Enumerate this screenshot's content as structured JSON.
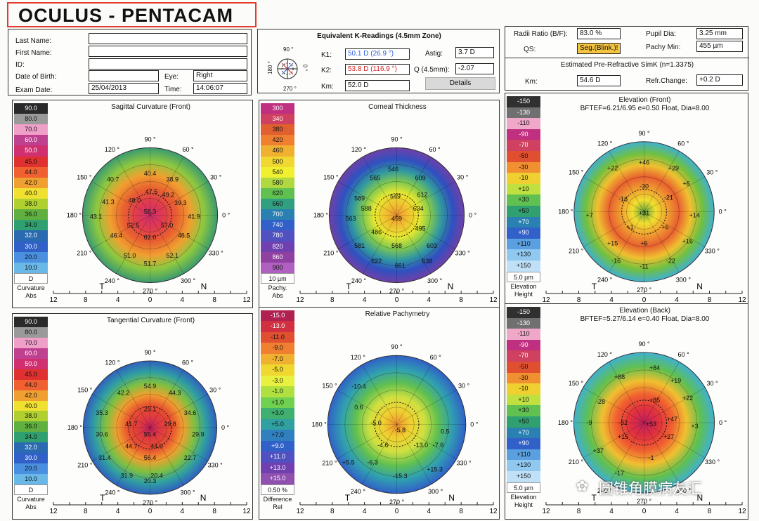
{
  "logo": "OCULUS - PENTACAM",
  "patient": {
    "last_name_label": "Last Name:",
    "first_name_label": "First Name:",
    "id_label": "ID:",
    "dob_label": "Date of Birth:",
    "exam_date_label": "Exam Date:",
    "exam_date": "25/04/2013",
    "eye_label": "Eye:",
    "eye": "Right",
    "time_label": "Time:",
    "time": "14:06:07"
  },
  "kread": {
    "title": "Equivalent K-Readings (4.5mm Zone)",
    "k1_label": "K1:",
    "k1": "50.1 D (26.9 °)",
    "k2_label": "K2:",
    "k2": "53.8 D (116.9 °)",
    "km_label": "Km:",
    "km": "52.0 D",
    "astig_label": "Astig:",
    "astig": "3.7 D",
    "q_label": "Q (4.5mm):",
    "q": "-2.07",
    "details": "Details",
    "compass": [
      "90 °",
      "180 °",
      "0 °",
      "270 °"
    ]
  },
  "right_info": {
    "radii_label": "Radii Ratio (B/F):",
    "radii": "83.0 %",
    "pupil_label": "Pupil Dia:",
    "pupil": "3.25 mm",
    "qs_label": "QS:",
    "qs": "Seg.(Blink.)!",
    "pachy_label": "Pachy Min:",
    "pachy": "455 µm",
    "simk_title": "Estimated Pre-Refractive SimK (n=1.3375)",
    "km_label": "Km:",
    "km": "54.6 D",
    "refr_label": "Refr.Change:",
    "refr": "+0.2 D"
  },
  "colors": {
    "accent_red": "#e23b2e",
    "qs_bg": "#f5c542",
    "k1_text": "#2a5bd7",
    "k2_text": "#d42020"
  },
  "scales": {
    "curvature": {
      "values": [
        "90.0",
        "80.0",
        "70.0",
        "60.0",
        "50.0",
        "45.0",
        "44.0",
        "42.0",
        "40.0",
        "38.0",
        "36.0",
        "34.0",
        "32.0",
        "30.0",
        "20.0",
        "10.0",
        "D"
      ],
      "foot1": "Curvature",
      "foot2": "Abs"
    },
    "pachy": {
      "values": [
        "300",
        "340",
        "380",
        "420",
        "460",
        "500",
        "540",
        "580",
        "620",
        "660",
        "700",
        "740",
        "780",
        "820",
        "860",
        "900",
        "10 µm"
      ],
      "foot1": "Pachy.",
      "foot2": "Abs"
    },
    "elev": {
      "values": [
        "-150",
        "-130",
        "-110",
        "-90",
        "-70",
        "-50",
        "-30",
        "-10",
        "+10",
        "+30",
        "+50",
        "+70",
        "+90",
        "+110",
        "+130",
        "+150",
        "5.0 µm"
      ],
      "foot1": "Elevation",
      "foot2": "Height"
    },
    "relpachy": {
      "values": [
        "-15.0",
        "-13.0",
        "-11.0",
        "-9.0",
        "-7.0",
        "-5.0",
        "-3.0",
        "-1.0",
        "+1.0",
        "+3.0",
        "+5.0",
        "+7.0",
        "+9.0",
        "+11.0",
        "+13.0",
        "+15.0",
        "0.50 %"
      ],
      "foot1": "Difference",
      "foot2": "Rel"
    }
  },
  "maps": {
    "sagittal": {
      "title": "Sagittal Curvature (Front)",
      "subtitle": "",
      "values": [
        "40.4",
        "40.7",
        "38.9",
        "41.3",
        "39.3",
        "47.5",
        "49.2",
        "48.0",
        "58.3",
        "43.1",
        "41.9",
        "52.5",
        "57.0",
        "46.4",
        "62.0",
        "46.5",
        "51.0",
        "52.1",
        "51.7"
      ]
    },
    "corneal": {
      "title": "Corneal Thickness",
      "subtitle": "",
      "values": [
        "546",
        "565",
        "609",
        "589",
        "549",
        "612",
        "588",
        "634",
        "563",
        "459",
        "486",
        "495",
        "581",
        "568",
        "603",
        "622",
        "661",
        "638"
      ]
    },
    "elev_front": {
      "title": "Elevation (Front)",
      "subtitle": "BFTEF=6.21/6.95 e=0.50 Float, Dia=8.00",
      "values": [
        "+46",
        "+29",
        "+22",
        "-30",
        "+6",
        "-16",
        "-21",
        "+7",
        "+31",
        "+14",
        "+1",
        "+6",
        "+15",
        "+6",
        "+16",
        "-16",
        "-11",
        "-22"
      ]
    },
    "tangential": {
      "title": "Tangential Curvature (Front)",
      "subtitle": "",
      "values": [
        "54.9",
        "42.2",
        "44.3",
        "35.3",
        "29.1",
        "34.6",
        "41.7",
        "29.8",
        "30.6",
        "55.4",
        "29.9",
        "44.7",
        "44.0",
        "31.4",
        "56.4",
        "22.7",
        "31.9",
        "20.3",
        "20.4"
      ]
    },
    "rel_pachy": {
      "title": "Relative Pachymetry",
      "subtitle": "",
      "values": [
        "-10.4",
        "0.6",
        "-5.0",
        "-5.8",
        "-4.6",
        "-13.0",
        "0.5",
        "-7.6",
        "-6.3",
        "-15.3",
        "+5.5",
        "+15.3"
      ]
    },
    "elev_back": {
      "title": "Elevation (Back)",
      "subtitle": "BFTEF=5.27/6.14 e=0.40 Float, Dia=8.00",
      "values": [
        "+88",
        "+84",
        "+19",
        "-28",
        "+85",
        "+22",
        "-9",
        "-32",
        "+47",
        "+53",
        "+3",
        "+15",
        "+27",
        "+37",
        "-1",
        "-17"
      ]
    }
  },
  "axis": {
    "ticks": [
      "12",
      "8",
      "4",
      "0",
      "4",
      "8",
      "12"
    ],
    "T": "T",
    "N": "N",
    "angles": [
      "90 °",
      "120 °",
      "60 °",
      "150 °",
      "30 °",
      "180 °",
      "0 °",
      "210 °",
      "330 °",
      "240 °",
      "300 °",
      "270 °"
    ]
  },
  "watermark": "圆锥角膜病友汇"
}
